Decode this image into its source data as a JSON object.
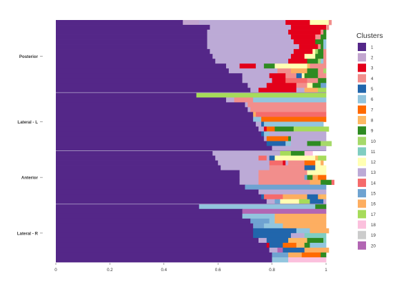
{
  "chart_data": {
    "type": "bar",
    "orientation": "horizontal",
    "stacked": true,
    "xlim": [
      0,
      1
    ],
    "x_ticks": [
      "0",
      "0.2",
      "0.4",
      "0.6",
      "0.8",
      "1"
    ],
    "x_tick_values": [
      0,
      0.2,
      0.4,
      0.6,
      0.8,
      1
    ],
    "groups": [
      {
        "label": "Posterior",
        "bars": [
          [
            [
              1,
              0.47
            ],
            [
              2,
              0.06
            ],
            [
              13,
              0.32
            ],
            [
              3,
              0.09
            ],
            [
              12,
              0.07
            ],
            [
              4,
              0.01
            ]
          ],
          [
            [
              1,
              0.57
            ],
            [
              13,
              0.3
            ],
            [
              3,
              0.13
            ],
            [
              4,
              0.01
            ]
          ],
          [
            [
              1,
              0.56
            ],
            [
              13,
              0.3
            ],
            [
              3,
              0.12
            ],
            [
              4,
              0.01
            ],
            [
              9,
              0.01
            ]
          ],
          [
            [
              1,
              0.56
            ],
            [
              13,
              0.31
            ],
            [
              3,
              0.09
            ],
            [
              4,
              0.02
            ],
            [
              9,
              0.02
            ]
          ],
          [
            [
              1,
              0.56
            ],
            [
              13,
              0.32
            ],
            [
              3,
              0.08
            ],
            [
              9,
              0.03
            ],
            [
              6,
              0.01
            ]
          ],
          [
            [
              1,
              0.56
            ],
            [
              13,
              0.34
            ],
            [
              3,
              0.07
            ],
            [
              4,
              0.01
            ],
            [
              9,
              0.01
            ],
            [
              6,
              0.01
            ]
          ],
          [
            [
              1,
              0.57
            ],
            [
              13,
              0.31
            ],
            [
              3,
              0.07
            ],
            [
              12,
              0.01
            ],
            [
              10,
              0.01
            ],
            [
              9,
              0.02
            ],
            [
              4,
              0.01
            ]
          ],
          [
            [
              1,
              0.58
            ],
            [
              13,
              0.29
            ],
            [
              3,
              0.05
            ],
            [
              12,
              0.04
            ],
            [
              9,
              0.03
            ],
            [
              4,
              0.01
            ]
          ],
          [
            [
              1,
              0.59
            ],
            [
              13,
              0.27
            ],
            [
              3,
              0.07
            ],
            [
              9,
              0.04
            ],
            [
              10,
              0.01
            ],
            [
              6,
              0.01
            ],
            [
              4,
              0.01
            ]
          ],
          [
            [
              1,
              0.63
            ],
            [
              13,
              0.05
            ],
            [
              3,
              0.06
            ],
            [
              13,
              0.03
            ],
            [
              9,
              0.04
            ],
            [
              12,
              0.12
            ],
            [
              8,
              0.01
            ],
            [
              4,
              0.06
            ]
          ],
          [
            [
              1,
              0.64
            ],
            [
              13,
              0.18
            ],
            [
              4,
              0.05
            ],
            [
              16,
              0.06
            ],
            [
              9,
              0.04
            ],
            [
              4,
              0.02
            ],
            [
              10,
              0.01
            ]
          ],
          [
            [
              1,
              0.69
            ],
            [
              13,
              0.1
            ],
            [
              3,
              0.06
            ],
            [
              4,
              0.04
            ],
            [
              5,
              0.02
            ],
            [
              12,
              0.01
            ],
            [
              9,
              0.05
            ],
            [
              4,
              0.03
            ]
          ],
          [
            [
              1,
              0.69
            ],
            [
              13,
              0.11
            ],
            [
              3,
              0.05
            ],
            [
              14,
              0.08
            ],
            [
              4,
              0.04
            ],
            [
              9,
              0.03
            ]
          ],
          [
            [
              1,
              0.71
            ],
            [
              13,
              0.07
            ],
            [
              3,
              0.11
            ],
            [
              4,
              0.04
            ],
            [
              12,
              0.02
            ],
            [
              9,
              0.03
            ],
            [
              15,
              0.02
            ]
          ],
          [
            [
              1,
              0.72
            ],
            [
              13,
              0.03
            ],
            [
              3,
              0.14
            ],
            [
              13,
              0.03
            ],
            [
              16,
              0.05
            ],
            [
              17,
              0.03
            ]
          ]
        ]
      },
      {
        "label": "Lateral - L",
        "bars": [
          [
            [
              1,
              0.52
            ],
            [
              17,
              0.48
            ]
          ],
          [
            [
              1,
              0.63
            ],
            [
              13,
              0.03
            ],
            [
              4,
              0.07
            ],
            [
              6,
              0.27
            ]
          ],
          [
            [
              1,
              0.7
            ],
            [
              13,
              0.01
            ],
            [
              4,
              0.29
            ]
          ],
          [
            [
              1,
              0.71
            ],
            [
              13,
              0.01
            ],
            [
              4,
              0.28
            ]
          ],
          [
            [
              1,
              0.73
            ],
            [
              16,
              0.01
            ],
            [
              14,
              0.26
            ]
          ],
          [
            [
              1,
              0.73
            ],
            [
              6,
              0.03
            ],
            [
              7,
              0.24
            ]
          ],
          [
            [
              1,
              0.74
            ],
            [
              13,
              0.02
            ],
            [
              5,
              0.01
            ],
            [
              6,
              0.22
            ]
          ],
          [
            [
              1,
              0.75
            ],
            [
              13,
              0.02
            ],
            [
              3,
              0.01
            ],
            [
              7,
              0.03
            ],
            [
              9,
              0.07
            ],
            [
              17,
              0.13
            ]
          ],
          [
            [
              1,
              0.76
            ],
            [
              5,
              0.01
            ],
            [
              6,
              0.02
            ],
            [
              13,
              0.21
            ]
          ],
          [
            [
              1,
              0.77
            ],
            [
              13,
              0.01
            ],
            [
              7,
              0.08
            ],
            [
              9,
              0.01
            ],
            [
              13,
              0.13
            ]
          ],
          [
            [
              1,
              0.78
            ],
            [
              5,
              0.07
            ],
            [
              6,
              0.02
            ],
            [
              13,
              0.06
            ],
            [
              9,
              0.05
            ],
            [
              10,
              0.04
            ]
          ],
          [
            [
              1,
              0.8
            ],
            [
              13,
              0.2
            ]
          ]
        ]
      },
      {
        "label": "Anterior",
        "bars": [
          [
            [
              1,
              0.58
            ],
            [
              13,
              0.25
            ],
            [
              17,
              0.04
            ],
            [
              9,
              0.05
            ],
            [
              18,
              0.03
            ]
          ],
          [
            [
              1,
              0.59
            ],
            [
              13,
              0.16
            ],
            [
              14,
              0.03
            ],
            [
              13,
              0.01
            ],
            [
              5,
              0.02
            ],
            [
              12,
              0.15
            ],
            [
              8,
              0.01
            ],
            [
              17,
              0.03
            ]
          ],
          [
            [
              1,
              0.6
            ],
            [
              13,
              0.19
            ],
            [
              14,
              0.05
            ],
            [
              3,
              0.01
            ],
            [
              13,
              0.01
            ],
            [
              4,
              0.06
            ],
            [
              7,
              0.04
            ],
            [
              12,
              0.02
            ],
            [
              16,
              0.01
            ]
          ],
          [
            [
              1,
              0.61
            ],
            [
              13,
              0.18
            ],
            [
              4,
              0.13
            ],
            [
              5,
              0.04
            ],
            [
              12,
              0.04
            ]
          ],
          [
            [
              1,
              0.68
            ],
            [
              13,
              0.07
            ],
            [
              4,
              0.18
            ],
            [
              12,
              0.07
            ]
          ],
          [
            [
              1,
              0.68
            ],
            [
              13,
              0.07
            ],
            [
              4,
              0.17
            ],
            [
              15,
              0.01
            ],
            [
              9,
              0.02
            ],
            [
              16,
              0.02
            ],
            [
              7,
              0.03
            ]
          ],
          [
            [
              1,
              0.68
            ],
            [
              13,
              0.07
            ],
            [
              4,
              0.19
            ],
            [
              16,
              0.04
            ],
            [
              9,
              0.04
            ],
            [
              14,
              0.01
            ]
          ],
          [
            [
              1,
              0.7
            ],
            [
              15,
              0.3
            ]
          ],
          [
            [
              1,
              0.75
            ],
            [
              13,
              0.05
            ],
            [
              13,
              0.2
            ]
          ],
          [
            [
              1,
              0.76
            ],
            [
              5,
              0.01
            ],
            [
              14,
              0.07
            ],
            [
              16,
              0.09
            ],
            [
              5,
              0.04
            ],
            [
              16,
              0.01
            ],
            [
              8,
              0.02
            ]
          ],
          [
            [
              1,
              0.78
            ],
            [
              13,
              0.03
            ],
            [
              15,
              0.02
            ],
            [
              12,
              0.07
            ],
            [
              17,
              0.04
            ],
            [
              5,
              0.05
            ],
            [
              13,
              0.01
            ]
          ]
        ]
      },
      {
        "label": "Lateral - R",
        "bars": [
          [
            [
              1,
              0.53
            ],
            [
              6,
              0.43
            ],
            [
              9,
              0.04
            ]
          ],
          [
            [
              1,
              0.69
            ],
            [
              20,
              0.31
            ]
          ],
          [
            [
              1,
              0.69
            ],
            [
              6,
              0.12
            ],
            [
              16,
              0.19
            ]
          ],
          [
            [
              1,
              0.72
            ],
            [
              15,
              0.07
            ],
            [
              6,
              0.02
            ],
            [
              16,
              0.19
            ]
          ],
          [
            [
              1,
              0.73
            ],
            [
              15,
              0.04
            ],
            [
              6,
              0.07
            ],
            [
              16,
              0.16
            ]
          ],
          [
            [
              1,
              0.73
            ],
            [
              5,
              0.16
            ],
            [
              6,
              0.05
            ],
            [
              16,
              0.07
            ]
          ],
          [
            [
              1,
              0.73
            ],
            [
              5,
              0.14
            ],
            [
              13,
              0.05
            ],
            [
              11,
              0.08
            ]
          ],
          [
            [
              1,
              0.75
            ],
            [
              13,
              0.03
            ],
            [
              5,
              0.08
            ],
            [
              8,
              0.07
            ],
            [
              9,
              0.06
            ],
            [
              11,
              0.01
            ]
          ],
          [
            [
              1,
              0.78
            ],
            [
              3,
              0.01
            ],
            [
              5,
              0.05
            ],
            [
              7,
              0.05
            ],
            [
              8,
              0.03
            ],
            [
              9,
              0.02
            ],
            [
              6,
              0.06
            ]
          ],
          [
            [
              1,
              0.79
            ],
            [
              13,
              0.03
            ],
            [
              20,
              0.02
            ],
            [
              5,
              0.08
            ],
            [
              16,
              0.09
            ]
          ],
          [
            [
              1,
              0.8
            ],
            [
              15,
              0.06
            ],
            [
              16,
              0.05
            ],
            [
              7,
              0.07
            ],
            [
              9,
              0.02
            ]
          ],
          [
            [
              1,
              0.8
            ],
            [
              6,
              0.06
            ],
            [
              18,
              0.14
            ]
          ]
        ]
      }
    ],
    "legend": {
      "title": "Clusters",
      "placement": "right",
      "items": [
        {
          "label": "1",
          "color": "#542788"
        },
        {
          "label": "2",
          "color": "#c2a5cf"
        },
        {
          "label": "3",
          "color": "#e3001a"
        },
        {
          "label": "4",
          "color": "#f28e8c"
        },
        {
          "label": "5",
          "color": "#2166ac"
        },
        {
          "label": "6",
          "color": "#92c5de"
        },
        {
          "label": "7",
          "color": "#ff6a00"
        },
        {
          "label": "8",
          "color": "#fdb863"
        },
        {
          "label": "9",
          "color": "#2e8b22"
        },
        {
          "label": "10",
          "color": "#a6d96a"
        },
        {
          "label": "11",
          "color": "#80cdc1"
        },
        {
          "label": "12",
          "color": "#ffffb3"
        },
        {
          "label": "13",
          "color": "#bcaad6"
        },
        {
          "label": "14",
          "color": "#f56b6b"
        },
        {
          "label": "15",
          "color": "#6fa3d1"
        },
        {
          "label": "16",
          "color": "#fdae61"
        },
        {
          "label": "17",
          "color": "#a6db5a"
        },
        {
          "label": "18",
          "color": "#fbc0dd"
        },
        {
          "label": "19",
          "color": "#cccccc"
        },
        {
          "label": "20",
          "color": "#b266b3"
        }
      ]
    },
    "separator_color": "#9e8bbd"
  }
}
